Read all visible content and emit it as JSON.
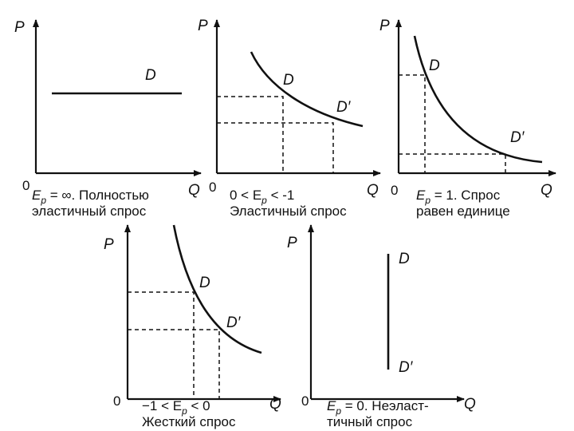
{
  "panels": [
    {
      "axis_y": "P",
      "axis_x": "Q",
      "origin": "0",
      "curve_labels": [
        "D"
      ],
      "caption": [
        [
          {
            "text": "E"
          },
          {
            "text": "p",
            "sub": true
          },
          {
            "text": " = ∞. Полностью"
          }
        ],
        [
          {
            "text": "эластичный спрос"
          }
        ]
      ]
    },
    {
      "axis_y": "P",
      "axis_x": "Q",
      "origin": "0",
      "curve_labels": [
        "D",
        "D′"
      ],
      "caption": [
        [
          {
            "text": "0 < E"
          },
          {
            "text": "p",
            "sub": true
          },
          {
            "text": " < -1"
          }
        ],
        [
          {
            "text": "Эластичный спрос"
          }
        ]
      ]
    },
    {
      "axis_y": "P",
      "axis_x": "Q",
      "origin": "0",
      "curve_labels": [
        "D",
        "D′"
      ],
      "caption": [
        [
          {
            "text": "E"
          },
          {
            "text": "p",
            "sub": true
          },
          {
            "text": " = 1. Спрос"
          }
        ],
        [
          {
            "text": "равен единице"
          }
        ]
      ]
    },
    {
      "axis_y": "P",
      "axis_x": "Q",
      "origin": "0",
      "curve_labels": [
        "D",
        "D′"
      ],
      "caption": [
        [
          {
            "text": "−1 < E"
          },
          {
            "text": "p",
            "sub": true
          },
          {
            "text": " < 0"
          }
        ],
        [
          {
            "text": "Жесткий спрос"
          }
        ]
      ]
    },
    {
      "axis_y": "P",
      "axis_x": "Q",
      "origin": "0",
      "curve_labels": [
        "D",
        "D′"
      ],
      "caption": [
        [
          {
            "text": "E"
          },
          {
            "text": "p",
            "sub": true
          },
          {
            "text": " = 0. Неэласт-"
          }
        ],
        [
          {
            "text": "тичный спрос"
          }
        ]
      ]
    }
  ]
}
